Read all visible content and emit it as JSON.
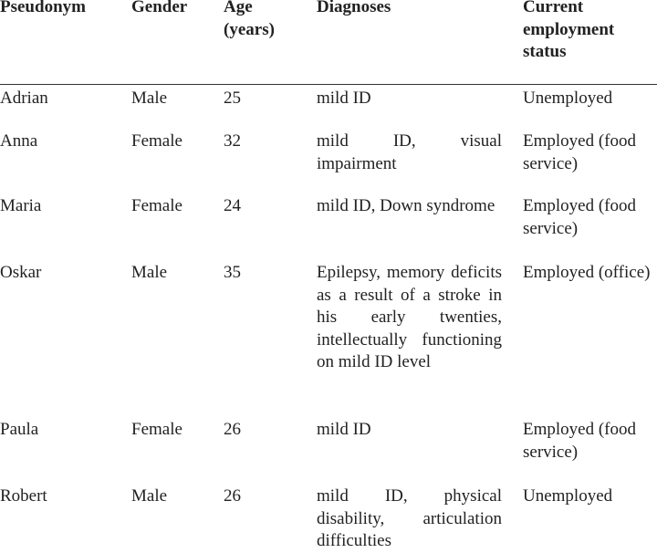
{
  "table": {
    "header": [
      "Pseudonym",
      "Gender",
      "Age (years)",
      "Diagnoses",
      "Current employment status"
    ],
    "rows": [
      [
        "Adrian",
        "Male",
        "25",
        "mild ID",
        "Unemployed"
      ],
      [
        "Anna",
        "Female",
        "32",
        "mild ID, visual impairment",
        "Employed (food service)"
      ],
      [
        "Maria",
        "Female",
        "24",
        "mild ID, Down syndrome",
        "Employed (food service)"
      ],
      [
        "Oskar",
        "Male",
        "35",
        "Epilepsy, memory deficits as a result of a stroke in his early twenties, intellectually functioning on mild ID level",
        "Employed (office)"
      ],
      [
        "Paula",
        "Female",
        "26",
        "mild ID",
        "Employed (food service)"
      ],
      [
        "Robert",
        "Male",
        "26",
        "mild ID, physical disability, articulation difficulties",
        "Unemployed"
      ]
    ]
  }
}
